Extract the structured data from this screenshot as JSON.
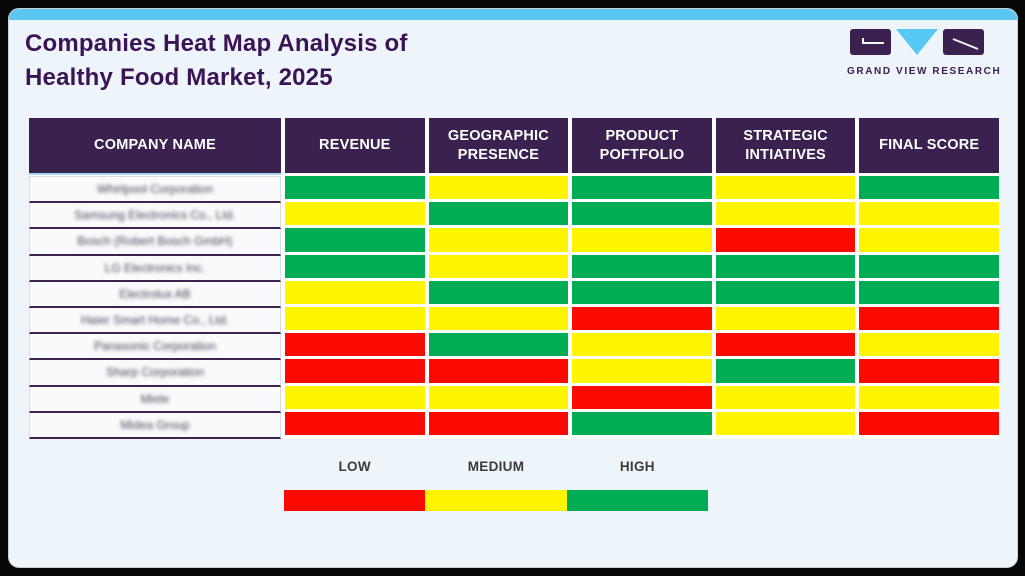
{
  "header": {
    "title_line1": "Companies Heat Map Analysis of",
    "title_line2": "Healthy Food Market, 2025",
    "logo_text": "GRAND VIEW RESEARCH"
  },
  "colors": {
    "low": "#fa0a00",
    "medium": "#fff500",
    "high": "#00ac54",
    "header_bg": "#3a2150",
    "accent_strip": "#5bc6f0",
    "title_purple": "#3a1454",
    "card_bg": "#edf4fa"
  },
  "table": {
    "company_names_blurred": true,
    "headers": [
      "COMPANY NAME",
      "REVENUE",
      "GEOGRAPHIC PRESENCE",
      "PRODUCT POFTFOLIO",
      "STRATEGIC INTIATIVES",
      "FINAL SCORE"
    ],
    "rows": [
      {
        "company": "Whirlpool Corporation",
        "levels": [
          "high",
          "medium",
          "high",
          "medium",
          "high"
        ]
      },
      {
        "company": "Samsung Electronics Co., Ltd.",
        "levels": [
          "medium",
          "high",
          "high",
          "medium",
          "medium"
        ]
      },
      {
        "company": "Bosch (Robert Bosch GmbH)",
        "levels": [
          "high",
          "medium",
          "medium",
          "low",
          "medium"
        ]
      },
      {
        "company": "LG Electronics Inc.",
        "levels": [
          "high",
          "medium",
          "high",
          "high",
          "high"
        ]
      },
      {
        "company": "Electrolux AB",
        "levels": [
          "medium",
          "high",
          "high",
          "high",
          "high"
        ]
      },
      {
        "company": "Haier Smart Home Co., Ltd.",
        "levels": [
          "medium",
          "medium",
          "low",
          "medium",
          "low"
        ]
      },
      {
        "company": "Panasonic Corporation",
        "levels": [
          "low",
          "high",
          "medium",
          "low",
          "medium"
        ]
      },
      {
        "company": "Sharp Corporation",
        "levels": [
          "low",
          "low",
          "medium",
          "high",
          "low"
        ]
      },
      {
        "company": "Miele",
        "levels": [
          "medium",
          "medium",
          "low",
          "medium",
          "medium"
        ]
      },
      {
        "company": "Midea Group",
        "levels": [
          "low",
          "low",
          "high",
          "medium",
          "low"
        ]
      }
    ]
  },
  "legend": {
    "items": [
      {
        "label": "LOW",
        "level": "low",
        "color": "#fa0a00"
      },
      {
        "label": "MEDIUM",
        "level": "medium",
        "color": "#fff500"
      },
      {
        "label": "HIGH",
        "level": "high",
        "color": "#00ac54"
      }
    ]
  },
  "chart_data": {
    "type": "heatmap",
    "title": "Companies Heat Map Analysis of Healthy Food Market, 2025",
    "columns": [
      "REVENUE",
      "GEOGRAPHIC PRESENCE",
      "PRODUCT POFTFOLIO",
      "STRATEGIC INTIATIVES",
      "FINAL SCORE"
    ],
    "rows": [
      "Whirlpool Corporation",
      "Samsung Electronics Co., Ltd.",
      "Bosch (Robert Bosch GmbH)",
      "LG Electronics Inc.",
      "Electrolux AB",
      "Haier Smart Home Co., Ltd.",
      "Panasonic Corporation",
      "Sharp Corporation",
      "Miele",
      "Midea Group"
    ],
    "values": [
      [
        "high",
        "medium",
        "high",
        "medium",
        "high"
      ],
      [
        "medium",
        "high",
        "high",
        "medium",
        "medium"
      ],
      [
        "high",
        "medium",
        "medium",
        "low",
        "medium"
      ],
      [
        "high",
        "medium",
        "high",
        "high",
        "high"
      ],
      [
        "medium",
        "high",
        "high",
        "high",
        "high"
      ],
      [
        "medium",
        "medium",
        "low",
        "medium",
        "low"
      ],
      [
        "low",
        "high",
        "medium",
        "low",
        "medium"
      ],
      [
        "low",
        "low",
        "medium",
        "high",
        "low"
      ],
      [
        "medium",
        "medium",
        "low",
        "medium",
        "medium"
      ],
      [
        "low",
        "low",
        "high",
        "medium",
        "low"
      ]
    ],
    "scale": {
      "low": "#fa0a00",
      "medium": "#fff500",
      "high": "#00ac54"
    },
    "legend": [
      "LOW",
      "MEDIUM",
      "HIGH"
    ],
    "legend_position": "bottom"
  }
}
